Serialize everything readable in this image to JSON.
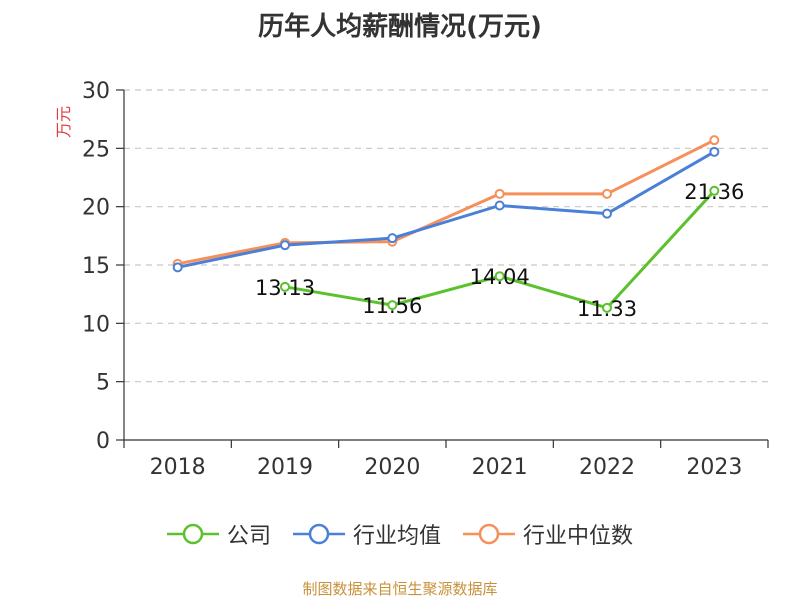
{
  "chart_data": {
    "type": "line",
    "title": "历年人均薪酬情况(万元)",
    "ylabel": "万元",
    "xlabel": "",
    "categories": [
      "2018",
      "2019",
      "2020",
      "2021",
      "2022",
      "2023"
    ],
    "ylim": [
      0,
      30
    ],
    "yticks": [
      0,
      5,
      10,
      15,
      20,
      25,
      30
    ],
    "grid": true,
    "legend_position": "bottom",
    "series": [
      {
        "name": "公司",
        "color": "#5bc12c",
        "values": [
          null,
          13.13,
          11.56,
          14.04,
          11.33,
          21.36
        ],
        "labels": [
          "",
          "13.13",
          "11.56",
          "14.04",
          "11.33",
          "21.36"
        ]
      },
      {
        "name": "行业均值",
        "color": "#4a80d8",
        "values": [
          14.8,
          16.7,
          17.3,
          20.1,
          19.4,
          24.7
        ]
      },
      {
        "name": "行业中位数",
        "color": "#f5905a",
        "values": [
          15.1,
          16.9,
          17.0,
          21.1,
          21.1,
          25.7
        ]
      }
    ]
  },
  "source": "制图数据来自恒生聚源数据库"
}
